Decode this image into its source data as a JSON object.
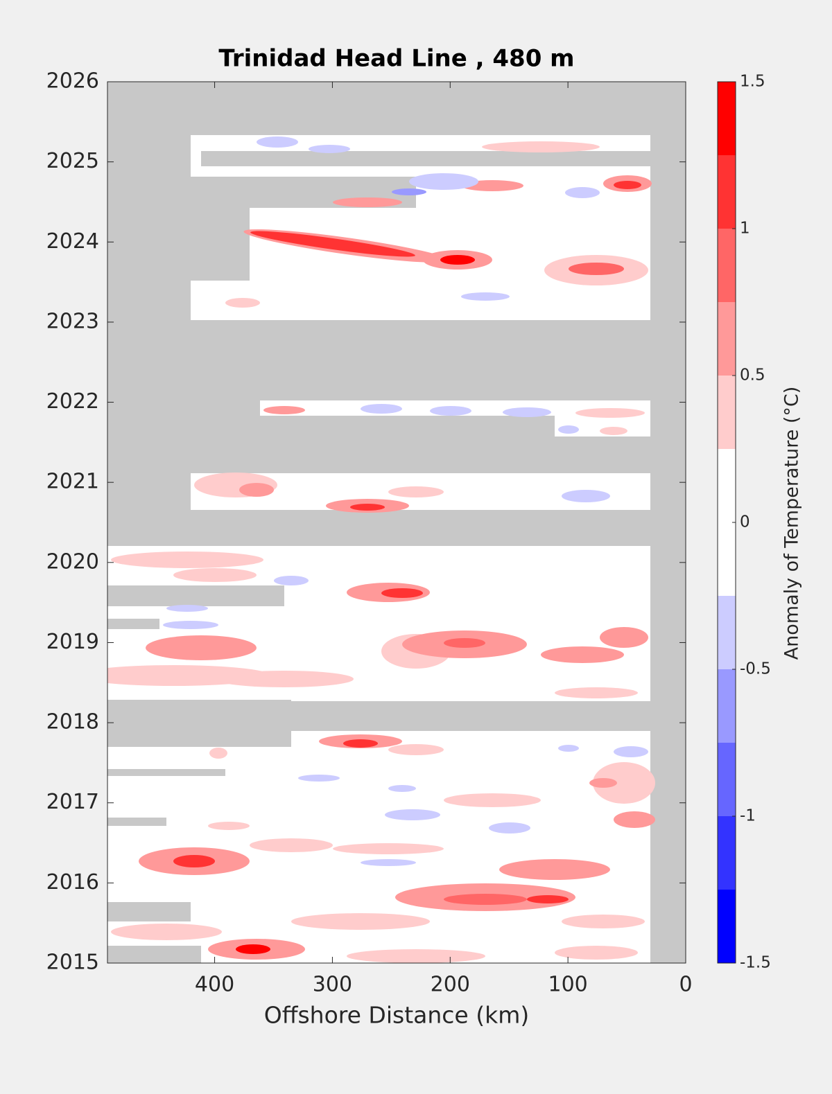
{
  "chart_data": {
    "type": "contour",
    "title": "Trinidad Head Line , 480 m",
    "x_label": "Offshore Distance (km)",
    "xlim": [
      491,
      0
    ],
    "xticks": [
      400,
      300,
      200,
      100,
      0
    ],
    "ylim": [
      2015,
      2026
    ],
    "yticks": [
      2015,
      2016,
      2017,
      2018,
      2019,
      2020,
      2021,
      2022,
      2023,
      2024,
      2025,
      2026
    ],
    "missing_color": "#c8c8c8",
    "colorbar": {
      "label": "Anomaly of Temperature (°C)",
      "levels": [
        -1.5,
        -1.25,
        -1,
        -0.75,
        -0.5,
        -0.25,
        0,
        0.25,
        0.5,
        0.75,
        1,
        1.25,
        1.5
      ],
      "colors": [
        "#0000ff",
        "#3333ff",
        "#6666ff",
        "#9999ff",
        "#ccccff",
        "#ffffff",
        "#ffffff",
        "#ffcccc",
        "#ff9999",
        "#ff6666",
        "#ff3333",
        "#ff0000"
      ],
      "ticks": [
        -1.5,
        -1,
        -0.5,
        0,
        0.5,
        1,
        1.5
      ]
    }
  }
}
